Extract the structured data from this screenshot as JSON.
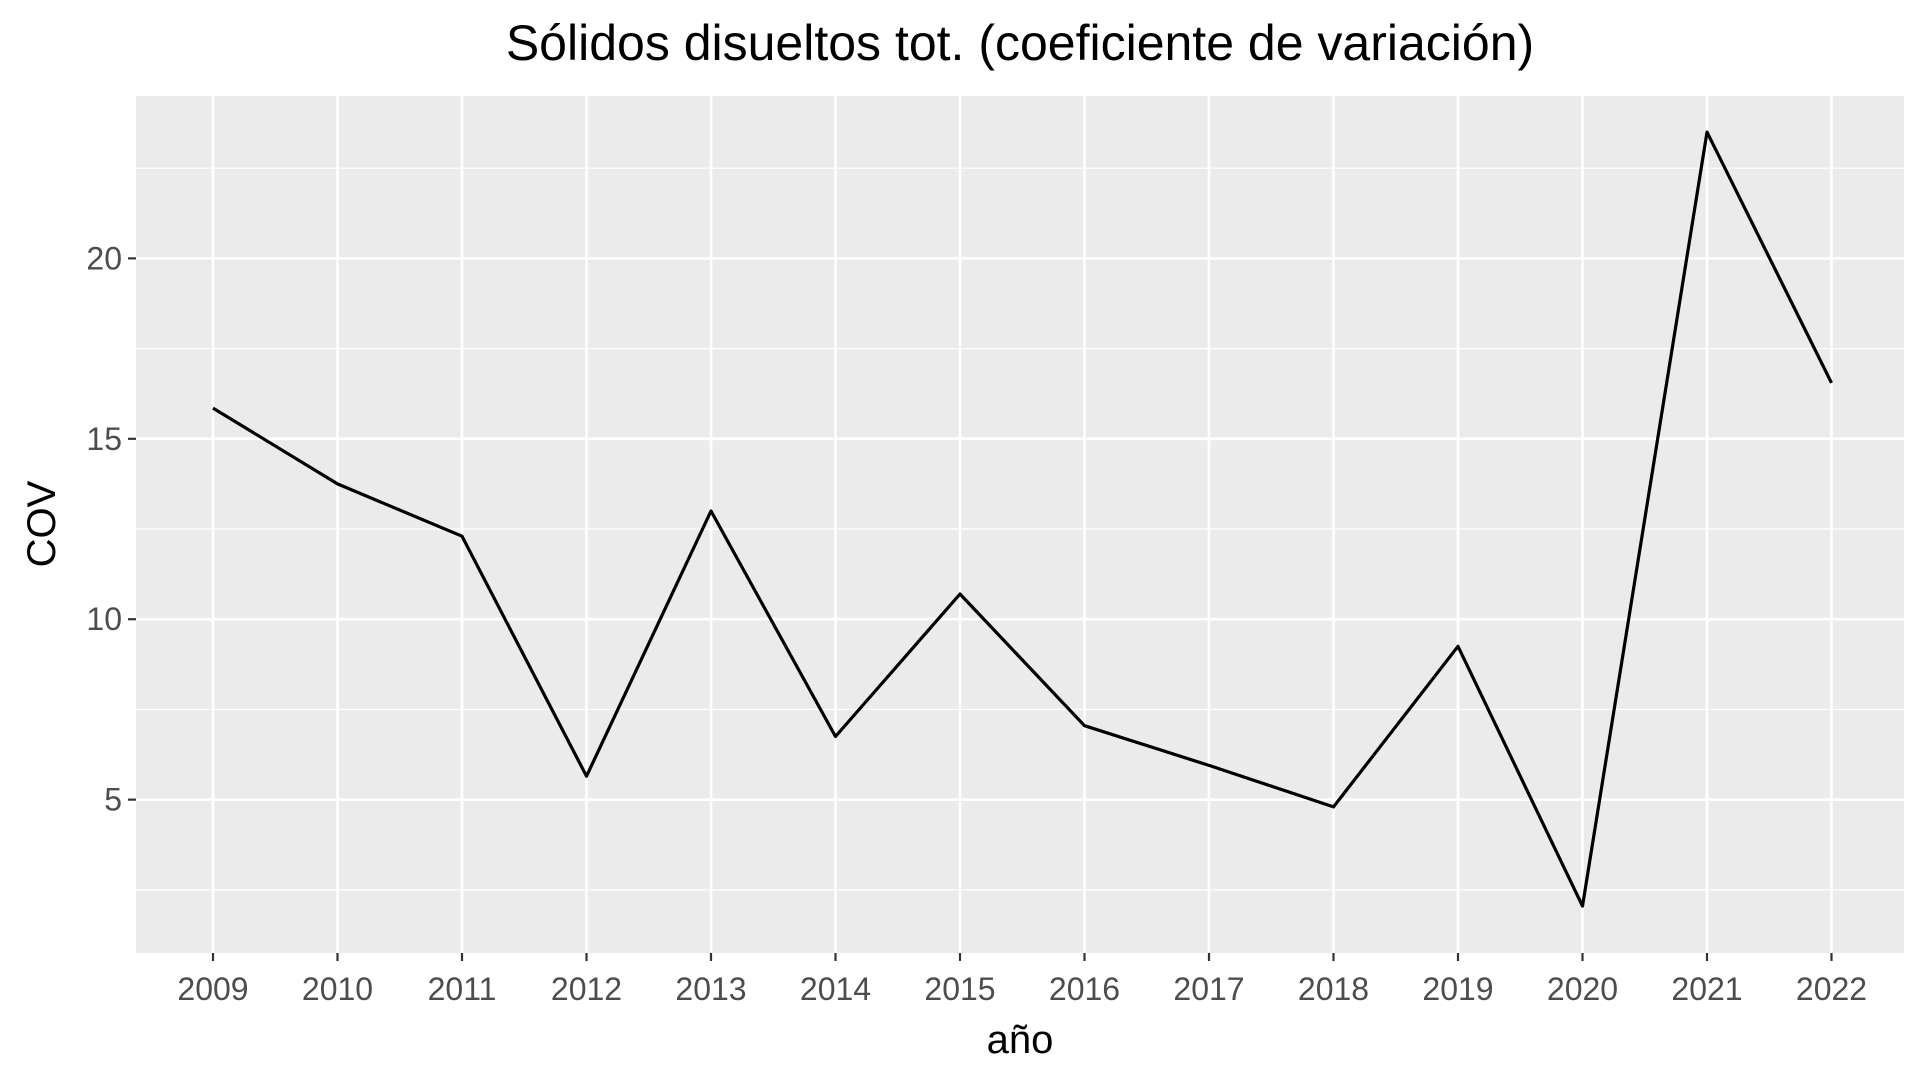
{
  "chart_data": {
    "type": "line",
    "title": "Sólidos disueltos tot. (coeficiente de variación)",
    "xlabel": "año",
    "ylabel": "COV",
    "x": [
      "2009",
      "2010",
      "2011",
      "2012",
      "2013",
      "2014",
      "2015",
      "2016",
      "2017",
      "2018",
      "2019",
      "2020",
      "2021",
      "2022"
    ],
    "series": [
      {
        "values": [
          15.85,
          13.75,
          12.3,
          5.65,
          13.0,
          6.75,
          10.7,
          7.05,
          5.95,
          4.8,
          9.25,
          2.05,
          23.5,
          16.55
        ]
      }
    ],
    "yticks": [
      "5",
      "10",
      "15",
      "20"
    ],
    "ylim": [
      0.75,
      24.5
    ],
    "grid": true,
    "legend": "none",
    "colors": {
      "panel_background": "#ebebeb",
      "grid_line": "#ffffff",
      "series_line": "#000000",
      "tick_text": "#4d4d4d"
    }
  }
}
